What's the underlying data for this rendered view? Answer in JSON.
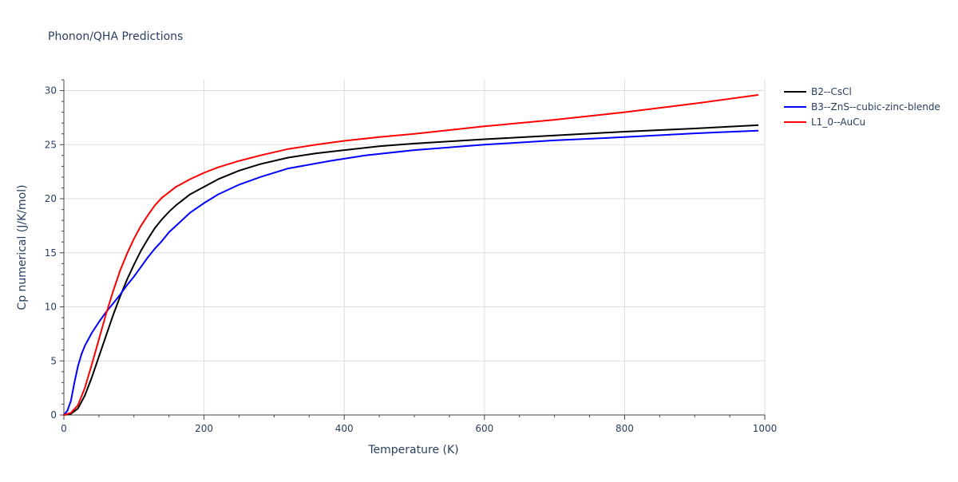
{
  "chart_data": {
    "type": "line",
    "title": "Phonon/QHA Predictions",
    "xlabel": "Temperature (K)",
    "ylabel": "Cp numerical (J/K/mol)",
    "xlim": [
      0,
      1000
    ],
    "ylim": [
      0,
      31
    ],
    "xticks": [
      0,
      200,
      400,
      600,
      800,
      1000
    ],
    "yticks": [
      0,
      5,
      10,
      15,
      20,
      25,
      30
    ],
    "grid": true,
    "legend_position": "top-right",
    "series": [
      {
        "name": "B2--CsCl",
        "color": "#000000",
        "x": [
          0,
          10,
          20,
          30,
          40,
          50,
          60,
          70,
          80,
          90,
          100,
          110,
          120,
          130,
          140,
          150,
          160,
          180,
          200,
          220,
          250,
          280,
          320,
          360,
          400,
          450,
          500,
          600,
          700,
          800,
          900,
          990
        ],
        "y": [
          0,
          0.1,
          0.6,
          1.8,
          3.5,
          5.4,
          7.3,
          9.2,
          10.9,
          12.5,
          13.9,
          15.2,
          16.3,
          17.3,
          18.1,
          18.8,
          19.4,
          20.4,
          21.1,
          21.8,
          22.6,
          23.2,
          23.8,
          24.2,
          24.5,
          24.85,
          25.1,
          25.5,
          25.85,
          26.2,
          26.5,
          26.8
        ]
      },
      {
        "name": "B3--ZnS--cubic-zinc-blende",
        "color": "#0000ff",
        "x": [
          0,
          5,
          10,
          15,
          20,
          25,
          30,
          40,
          50,
          60,
          70,
          80,
          90,
          100,
          110,
          120,
          130,
          140,
          150,
          160,
          180,
          200,
          220,
          250,
          280,
          320,
          380,
          430,
          500,
          600,
          700,
          800,
          900,
          990
        ],
        "y": [
          0,
          0.4,
          1.3,
          3.0,
          4.5,
          5.6,
          6.4,
          7.6,
          8.6,
          9.5,
          10.3,
          11.1,
          12.0,
          12.8,
          13.7,
          14.6,
          15.4,
          16.1,
          16.9,
          17.5,
          18.7,
          19.6,
          20.4,
          21.3,
          22.0,
          22.8,
          23.5,
          24.0,
          24.5,
          25.0,
          25.4,
          25.7,
          26.05,
          26.3
        ]
      },
      {
        "name": "L1_0--AuCu",
        "color": "#ff0000",
        "x": [
          0,
          10,
          20,
          30,
          40,
          50,
          60,
          70,
          80,
          90,
          100,
          110,
          120,
          130,
          140,
          150,
          160,
          180,
          200,
          220,
          250,
          280,
          320,
          360,
          400,
          450,
          500,
          600,
          700,
          800,
          900,
          990
        ],
        "y": [
          0,
          0.2,
          0.9,
          2.5,
          4.7,
          7.0,
          9.3,
          11.4,
          13.3,
          14.9,
          16.3,
          17.5,
          18.5,
          19.4,
          20.1,
          20.6,
          21.1,
          21.8,
          22.4,
          22.9,
          23.5,
          24.0,
          24.6,
          25.0,
          25.35,
          25.7,
          26.0,
          26.7,
          27.3,
          28.0,
          28.8,
          29.6
        ]
      }
    ]
  }
}
